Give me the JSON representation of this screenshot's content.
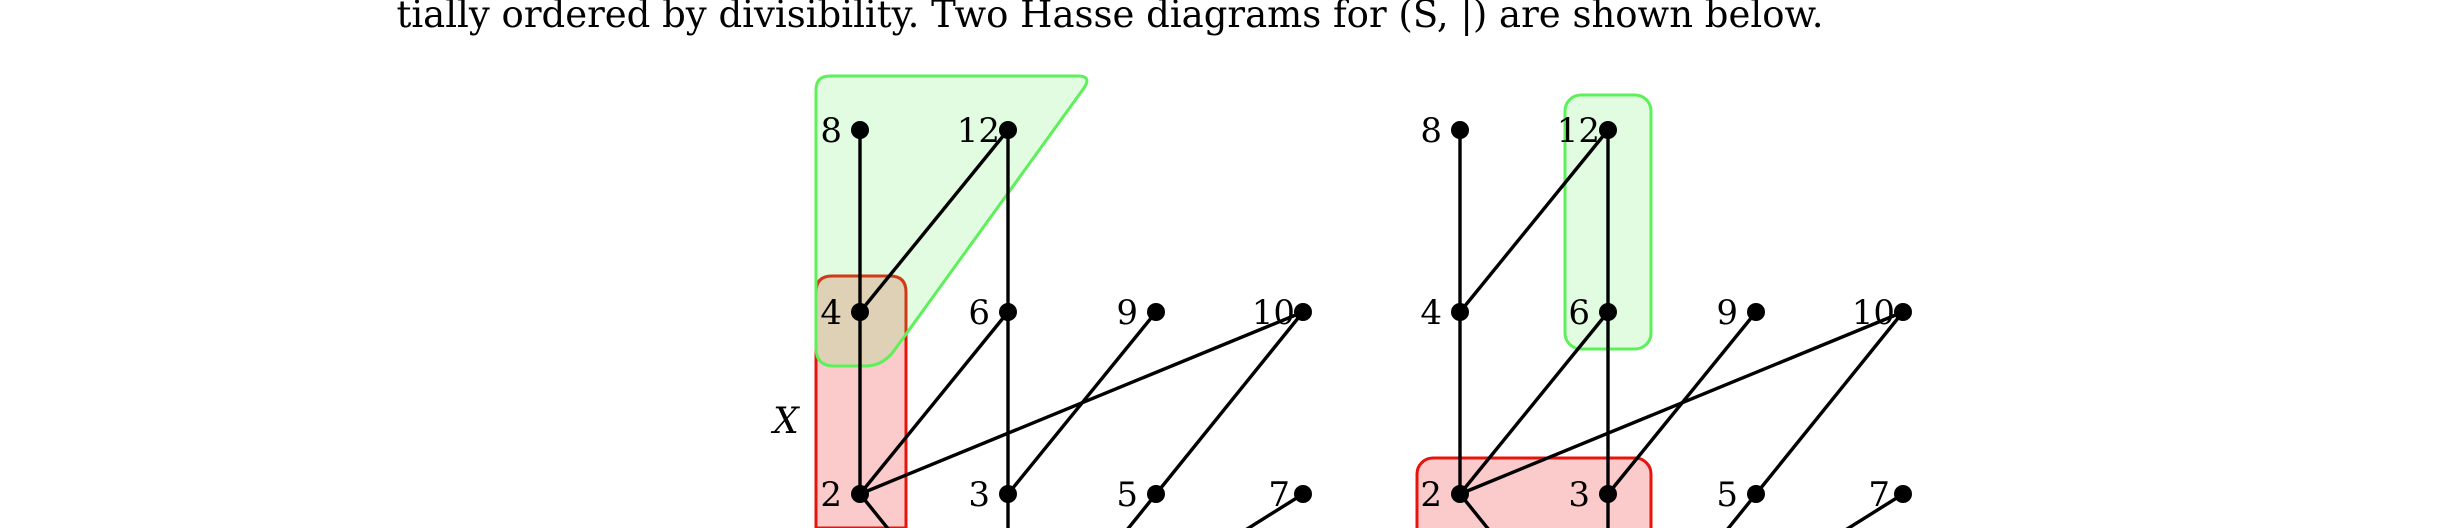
{
  "caption": {
    "text": "tially ordered by divisibility. Two Hasse diagrams for (S, |) are shown below."
  },
  "diagrams": [
    {
      "id": "left",
      "set_label": "X",
      "labels": {
        "n8": "8",
        "n12": "12",
        "n4": "4",
        "n6": "6",
        "n9": "9",
        "n10": "10",
        "n2": "2",
        "n3": "3",
        "n5": "5",
        "n7": "7"
      },
      "highlights": {
        "red": "#e8140c",
        "green": "#5ef05a"
      }
    },
    {
      "id": "right",
      "labels": {
        "n8": "8",
        "n12": "12",
        "n4": "4",
        "n6": "6",
        "n9": "9",
        "n10": "10",
        "n2": "2",
        "n3": "3",
        "n5": "5",
        "n7": "7"
      },
      "highlights": {
        "red": "#e8140c",
        "green": "#5ef05a"
      }
    }
  ]
}
